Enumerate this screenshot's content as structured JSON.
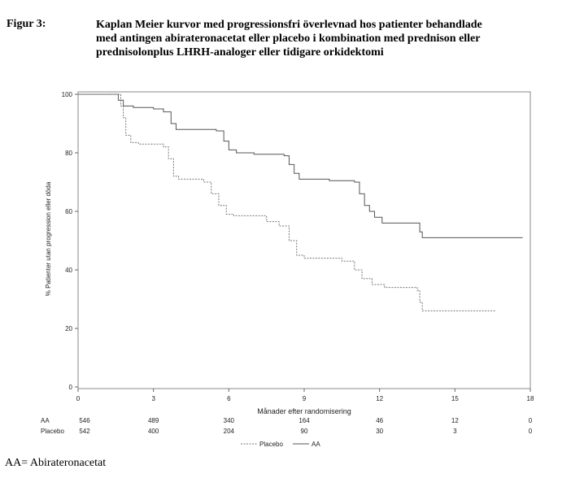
{
  "figure_label": "Figur 3:",
  "caption_lines": [
    "Kaplan Meier kurvor med progressionsfri överlevnad hos patienter behandlade",
    "med antingen abirateronacetat eller placebo i kombination med prednison eller",
    "prednisolonplus LHRH-analoger eller tidigare orkidektomi"
  ],
  "footnote": "AA= Abirateronacetat",
  "chart_data": {
    "type": "line",
    "title": "",
    "xlabel": "Månader efter randomisering",
    "ylabel": "% Patienter utan progression eller döda",
    "xlim": [
      0,
      18
    ],
    "ylim": [
      0,
      100
    ],
    "x_ticks": [
      "0",
      "3",
      "6",
      "9",
      "12",
      "15",
      "18"
    ],
    "y_ticks": [
      "0",
      "20",
      "40",
      "60",
      "80",
      "100"
    ],
    "series": [
      {
        "name": "AA",
        "style": "solid",
        "color": "#555555",
        "points": [
          [
            0,
            100
          ],
          [
            1.5,
            100
          ],
          [
            1.6,
            98
          ],
          [
            1.8,
            96
          ],
          [
            2.2,
            95.5
          ],
          [
            3,
            95
          ],
          [
            3.4,
            94
          ],
          [
            3.7,
            90
          ],
          [
            3.9,
            88
          ],
          [
            4.5,
            88
          ],
          [
            5.5,
            87.5
          ],
          [
            5.8,
            84
          ],
          [
            6,
            81
          ],
          [
            6.3,
            80
          ],
          [
            7,
            79.5
          ],
          [
            8.2,
            79
          ],
          [
            8.4,
            76
          ],
          [
            8.6,
            73
          ],
          [
            8.8,
            71
          ],
          [
            10,
            70.5
          ],
          [
            11,
            70
          ],
          [
            11.2,
            66
          ],
          [
            11.4,
            62
          ],
          [
            11.6,
            60
          ],
          [
            11.8,
            58
          ],
          [
            12.1,
            56
          ],
          [
            13.5,
            56
          ],
          [
            13.6,
            53
          ],
          [
            13.7,
            51
          ],
          [
            17.7,
            51
          ]
        ]
      },
      {
        "name": "Placebo",
        "style": "dashed",
        "color": "#777777",
        "points": [
          [
            0,
            100
          ],
          [
            1.6,
            100
          ],
          [
            1.7,
            96
          ],
          [
            1.8,
            92
          ],
          [
            1.9,
            86
          ],
          [
            2.1,
            83.5
          ],
          [
            2.4,
            83
          ],
          [
            3.4,
            82
          ],
          [
            3.6,
            78
          ],
          [
            3.8,
            72
          ],
          [
            4.0,
            71
          ],
          [
            5,
            70
          ],
          [
            5.3,
            66
          ],
          [
            5.6,
            62
          ],
          [
            5.9,
            59
          ],
          [
            6.2,
            58.5
          ],
          [
            7.5,
            56.5
          ],
          [
            8,
            55
          ],
          [
            8.4,
            50
          ],
          [
            8.7,
            45
          ],
          [
            9,
            44
          ],
          [
            10.5,
            43
          ],
          [
            11,
            40
          ],
          [
            11.3,
            37
          ],
          [
            11.7,
            35
          ],
          [
            12.2,
            34
          ],
          [
            13.5,
            33
          ],
          [
            13.6,
            29
          ],
          [
            13.7,
            26
          ],
          [
            16.6,
            26
          ]
        ]
      }
    ],
    "at_risk": {
      "AA": [
        "546",
        "489",
        "340",
        "164",
        "46",
        "12",
        "0"
      ],
      "Placebo": [
        "542",
        "400",
        "204",
        "90",
        "30",
        "3",
        "0"
      ]
    },
    "legend": [
      "Placebo",
      "AA"
    ],
    "legend_position": "bottom-center",
    "grid": false
  }
}
